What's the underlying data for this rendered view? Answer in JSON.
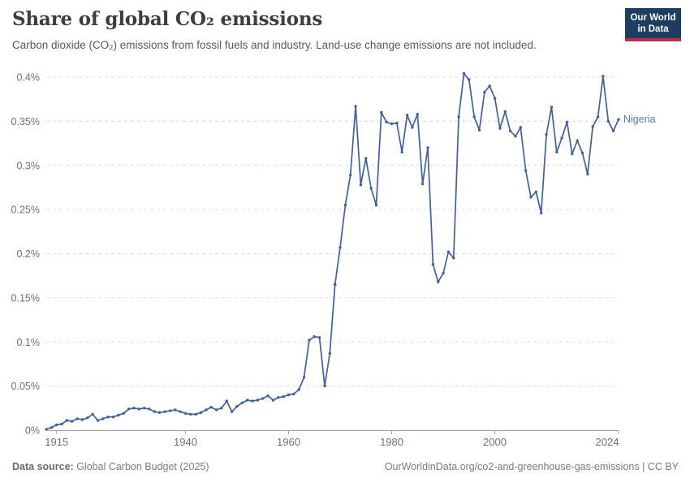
{
  "header": {
    "title": "Share of global CO₂ emissions",
    "subtitle": "Carbon dioxide (CO₂) emissions from fossil fuels and industry. Land-use change emissions are not included.",
    "logo": {
      "line1": "Our World",
      "line2": "in Data"
    }
  },
  "footer": {
    "source_label": "Data source:",
    "source_value": " Global Carbon Budget (2025)",
    "attribution": "OurWorldinData.org/co2-and-greenhouse-gas-emissions | CC BY"
  },
  "colors": {
    "line": "#41619e",
    "entity_label": "#5878b0",
    "axis_text": "#6e7079",
    "grid": "#dcdcdc",
    "axis_line": "#a3a3a3",
    "title": "#3a3e43",
    "logo_bg": "#1d3d63",
    "logo_accent": "#be2d46"
  },
  "chart_data": {
    "type": "line",
    "title": "Share of global CO₂ emissions",
    "xlabel": "",
    "ylabel": "",
    "xlim": [
      1913,
      2024
    ],
    "ylim": [
      0,
      0.4
    ],
    "grid": "horizontal-dashed",
    "legend_position": "end-of-line-label",
    "x_ticks": [
      1915,
      1940,
      1960,
      1980,
      2000,
      2024
    ],
    "y_ticks": [
      0,
      0.05,
      0.1,
      0.15,
      0.2,
      0.25,
      0.3,
      0.35,
      0.4
    ],
    "y_tick_labels": [
      "0%",
      "0.05%",
      "0.1%",
      "0.15%",
      "0.2%",
      "0.25%",
      "0.3%",
      "0.35%",
      "0.4%"
    ],
    "end_label": "Nigeria",
    "series": [
      {
        "name": "Nigeria",
        "color": "#41619e",
        "unit": "%",
        "x": [
          1913,
          1914,
          1915,
          1916,
          1917,
          1918,
          1919,
          1920,
          1921,
          1922,
          1923,
          1924,
          1925,
          1926,
          1927,
          1928,
          1929,
          1930,
          1931,
          1932,
          1933,
          1934,
          1935,
          1936,
          1937,
          1938,
          1939,
          1940,
          1941,
          1942,
          1943,
          1944,
          1945,
          1946,
          1947,
          1948,
          1949,
          1950,
          1951,
          1952,
          1953,
          1954,
          1955,
          1956,
          1957,
          1958,
          1959,
          1960,
          1961,
          1962,
          1963,
          1964,
          1965,
          1966,
          1967,
          1968,
          1969,
          1970,
          1971,
          1972,
          1973,
          1974,
          1975,
          1976,
          1977,
          1978,
          1979,
          1980,
          1981,
          1982,
          1983,
          1984,
          1985,
          1986,
          1987,
          1988,
          1989,
          1990,
          1991,
          1992,
          1993,
          1994,
          1995,
          1996,
          1997,
          1998,
          1999,
          2000,
          2001,
          2002,
          2003,
          2004,
          2005,
          2006,
          2007,
          2008,
          2009,
          2010,
          2011,
          2012,
          2013,
          2014,
          2015,
          2016,
          2017,
          2018,
          2019,
          2020,
          2021,
          2022,
          2023,
          2024
        ],
        "values": [
          0.001,
          0.003,
          0.006,
          0.007,
          0.011,
          0.01,
          0.013,
          0.012,
          0.014,
          0.018,
          0.011,
          0.013,
          0.015,
          0.015,
          0.017,
          0.019,
          0.024,
          0.025,
          0.024,
          0.025,
          0.024,
          0.021,
          0.02,
          0.021,
          0.022,
          0.023,
          0.021,
          0.019,
          0.018,
          0.018,
          0.02,
          0.023,
          0.026,
          0.023,
          0.025,
          0.033,
          0.021,
          0.027,
          0.031,
          0.034,
          0.033,
          0.034,
          0.036,
          0.039,
          0.034,
          0.037,
          0.038,
          0.04,
          0.041,
          0.046,
          0.06,
          0.102,
          0.106,
          0.105,
          0.05,
          0.087,
          0.165,
          0.207,
          0.255,
          0.289,
          0.367,
          0.278,
          0.308,
          0.274,
          0.255,
          0.36,
          0.349,
          0.347,
          0.348,
          0.315,
          0.357,
          0.343,
          0.358,
          0.279,
          0.32,
          0.188,
          0.168,
          0.178,
          0.202,
          0.195,
          0.355,
          0.404,
          0.397,
          0.355,
          0.34,
          0.383,
          0.39,
          0.376,
          0.342,
          0.361,
          0.339,
          0.333,
          0.343,
          0.294,
          0.264,
          0.27,
          0.246,
          0.335,
          0.366,
          0.315,
          0.331,
          0.349,
          0.313,
          0.328,
          0.314,
          0.29,
          0.344,
          0.355,
          0.401,
          0.35,
          0.339,
          0.352
        ]
      }
    ]
  }
}
